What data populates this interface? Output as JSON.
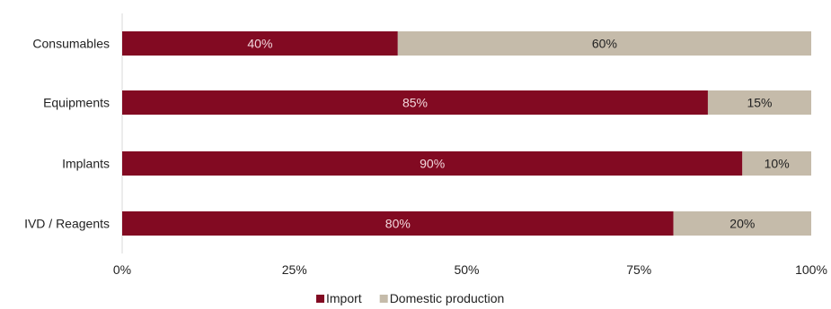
{
  "chart_data": {
    "type": "bar",
    "orientation": "horizontal",
    "stacked": true,
    "categories": [
      "Consumables",
      "Equipments",
      "Implants",
      "IVD / Reagents"
    ],
    "series": [
      {
        "name": "Import",
        "values": [
          40,
          85,
          90,
          80
        ],
        "color": "#820a22",
        "label_color": "#f2d7dc"
      },
      {
        "name": "Domestic production",
        "values": [
          60,
          15,
          10,
          20
        ],
        "color": "#c5bbaa",
        "label_color": "#222222"
      }
    ],
    "value_labels": [
      [
        "40%",
        "85%",
        "90%",
        "80%"
      ],
      [
        "60%",
        "15%",
        "10%",
        "20%"
      ]
    ],
    "xlim": [
      0,
      100
    ],
    "x_ticks": [
      0,
      25,
      50,
      75,
      100
    ],
    "x_tick_labels": [
      "0%",
      "25%",
      "50%",
      "75%",
      "100%"
    ],
    "grid": false,
    "legend_position": "bottom-center",
    "axis_color": "#d9d9d9"
  }
}
